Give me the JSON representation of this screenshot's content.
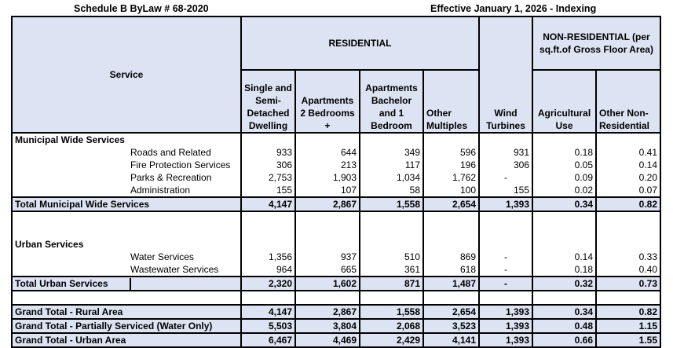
{
  "title_left": "Schedule B ByLaw # 68-2020",
  "title_right": "Effective January 1, 2026 - Indexing",
  "headers": {
    "service": "Service",
    "residential": "RESIDENTIAL",
    "wind": "Wind Turbines",
    "nonres": "NON-RESIDENTIAL (per sq.ft.of Gross Floor Area)",
    "single": "Single and Semi-Detached Dwelling",
    "apt2": "Apartments 2 Bedrooms +",
    "aptb": "Apartments Bachelor and 1 Bedroom",
    "other": "Other Multiples",
    "agri": "Agricultural Use",
    "othernr": "Other Non-Residential"
  },
  "rows": [
    {
      "type": "sec",
      "label": "Municipal Wide Services",
      "v": [
        "",
        "",
        "",
        "",
        "",
        "",
        ""
      ]
    },
    {
      "type": "item",
      "label": "Roads and Related",
      "v": [
        "933",
        "644",
        "349",
        "596",
        "931",
        "0.18",
        "0.41"
      ]
    },
    {
      "type": "item",
      "label": "Fire Protection Services",
      "v": [
        "306",
        "213",
        "117",
        "196",
        "306",
        "0.05",
        "0.14"
      ]
    },
    {
      "type": "item",
      "label": "Parks & Recreation",
      "v": [
        "2,753",
        "1,903",
        "1,034",
        "1,762",
        "-",
        "0.09",
        "0.20"
      ]
    },
    {
      "type": "item",
      "label": "Administration",
      "v": [
        "155",
        "107",
        "58",
        "100",
        "155",
        "0.02",
        "0.07"
      ]
    },
    {
      "type": "tot",
      "label": "Total Municipal Wide Services",
      "v": [
        "4,147",
        "2,867",
        "1,558",
        "2,654",
        "1,393",
        "0.34",
        "0.82"
      ]
    },
    {
      "type": "blank",
      "label": "",
      "v": [
        "",
        "",
        "",
        "",
        "",
        "",
        ""
      ]
    },
    {
      "type": "sec",
      "label": "Urban Services",
      "v": [
        "",
        "",
        "",
        "",
        "",
        "",
        ""
      ]
    },
    {
      "type": "item",
      "label": "Water Services",
      "v": [
        "1,356",
        "937",
        "510",
        "869",
        "-",
        "0.14",
        "0.33"
      ]
    },
    {
      "type": "item",
      "label": "Wastewater Services",
      "v": [
        "964",
        "665",
        "361",
        "618",
        "-",
        "0.18",
        "0.40"
      ]
    },
    {
      "type": "tot",
      "label": "Total Urban Services",
      "v": [
        "2,320",
        "1,602",
        "871",
        "1,487",
        "-",
        "0.32",
        "0.73"
      ]
    },
    {
      "type": "blank",
      "label": "",
      "v": [
        "",
        "",
        "",
        "",
        "",
        "",
        ""
      ]
    },
    {
      "type": "tot",
      "label": "Grand Total - Rural Area",
      "v": [
        "4,147",
        "2,867",
        "1,558",
        "2,654",
        "1,393",
        "0.34",
        "0.82"
      ]
    },
    {
      "type": "tot",
      "label": "Grand Total - Partially Serviced (Water Only)",
      "v": [
        "5,503",
        "3,804",
        "2,068",
        "3,523",
        "1,393",
        "0.48",
        "1.15"
      ]
    },
    {
      "type": "tot",
      "label": "Grand Total - Urban Area",
      "v": [
        "6,467",
        "4,469",
        "2,429",
        "4,141",
        "1,393",
        "0.66",
        "1.55"
      ]
    }
  ]
}
